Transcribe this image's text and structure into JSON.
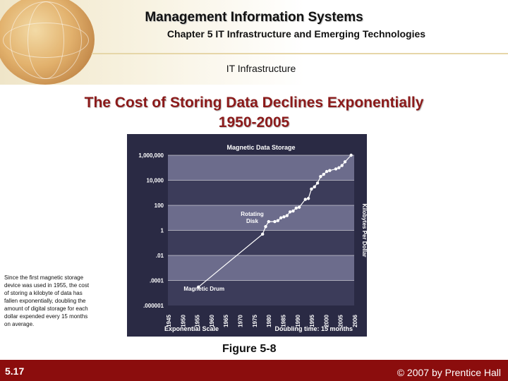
{
  "header": {
    "course_title": "Management Information Systems",
    "chapter_title": "Chapter 5 IT Infrastructure and Emerging Technologies",
    "section_title": "IT Infrastructure"
  },
  "slide": {
    "title_line1": "The Cost of Storing Data Declines Exponentially",
    "title_line2": "1950-2005",
    "side_note": "Since the first magnetic storage device was used in 1955, the cost of storing a kilobyte of data has fallen exponentially, doubling the amount of digital storage for each dollar expended every 15 months on average.",
    "figure_caption": "Figure 5-8"
  },
  "footer": {
    "slide_number": "5.17",
    "copyright": "© 2007 by Prentice Hall"
  },
  "colors": {
    "chart_frame": "#2a2a44",
    "band_dark": "#3c3c5a",
    "band_light": "#6c6c8c",
    "series_line": "#ffffff",
    "footer_bg": "#8b0d0d",
    "title_color": "#8b1a1a"
  },
  "chart_data": {
    "type": "line",
    "title": "Magnetic Data Storage",
    "xlabel": "Exponential Scale",
    "ylabel": "Kilobytes Per Dollar",
    "y_scale": "log",
    "ylim": [
      1e-06,
      1000000
    ],
    "xlim": [
      1945,
      2006
    ],
    "x_ticks": [
      "1945",
      "1950",
      "1955",
      "1960",
      "1965",
      "1970",
      "1975",
      "1980",
      "1985",
      "1990",
      "1995",
      "2000",
      "2005",
      "2006"
    ],
    "y_ticks": [
      {
        "value": 1000000,
        "label": "1,000,000"
      },
      {
        "value": 10000,
        "label": "10,000"
      },
      {
        "value": 100,
        "label": "100"
      },
      {
        "value": 1,
        "label": "1"
      },
      {
        "value": 0.01,
        "label": ".01"
      },
      {
        "value": 0.0001,
        "label": ".0001"
      },
      {
        "value": 1e-06,
        "label": ".000001"
      }
    ],
    "annotations": [
      {
        "text": "Magnetic Drum",
        "x": 1955,
        "y": 2e-05
      },
      {
        "text": "Rotating Disk",
        "x": 1974,
        "y": 3
      },
      {
        "text": "Doubling time: 15 months",
        "position": "bottom-right"
      }
    ],
    "series": [
      {
        "x": [
          1955,
          1976,
          1977,
          1978,
          1980,
          1981,
          1982,
          1983,
          1984,
          1985,
          1986,
          1987,
          1988,
          1990,
          1991,
          1992,
          1993,
          1994,
          1995,
          1996,
          1997,
          1998,
          2000,
          2001,
          2002,
          2003,
          2005
        ],
        "y": [
          3e-05,
          0.5,
          2,
          5,
          5,
          6,
          10,
          12,
          15,
          30,
          35,
          60,
          70,
          300,
          350,
          2000,
          3000,
          6000,
          20000,
          30000,
          50000,
          60000,
          80000,
          100000,
          150000,
          300000,
          1000000
        ]
      }
    ]
  }
}
